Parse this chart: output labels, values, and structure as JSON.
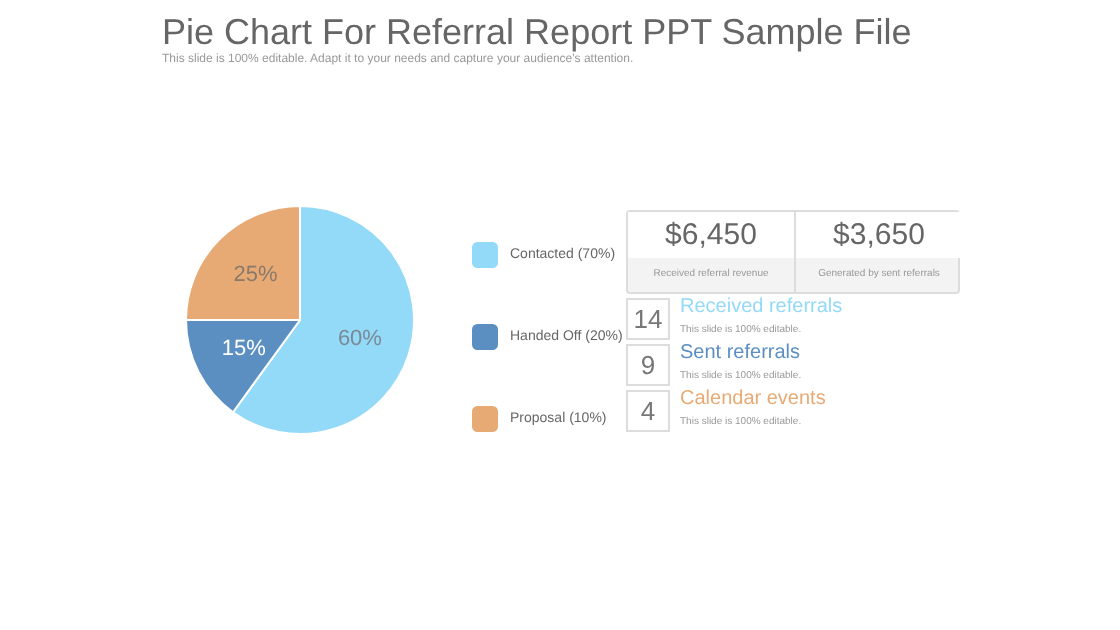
{
  "chart_data": {
    "type": "pie",
    "title": "Pie Chart For Referral Report PPT Sample File",
    "subtitle": "This slide is 100% editable. Adapt it to your needs and capture your audience's attention.",
    "categories": [
      "Contacted (70%)",
      "Handed Off (20%)",
      "Proposal (10%)"
    ],
    "values": [
      60,
      15,
      25
    ],
    "colors": [
      "#93d9f8",
      "#5b8fc2",
      "#e8aa74"
    ],
    "value_labels": [
      "60%",
      "15%",
      "25%"
    ],
    "legend": "right",
    "annotations": [
      "$6,450",
      "Received referral revenue",
      "$3,650",
      "Generated by sent referrals",
      "14",
      "Received referrals",
      "This slide is 100% editable.",
      "9",
      "Sent referrals",
      "This slide is 100% editable.",
      "4",
      "Calendar events",
      "This slide is 100% editable."
    ]
  }
}
